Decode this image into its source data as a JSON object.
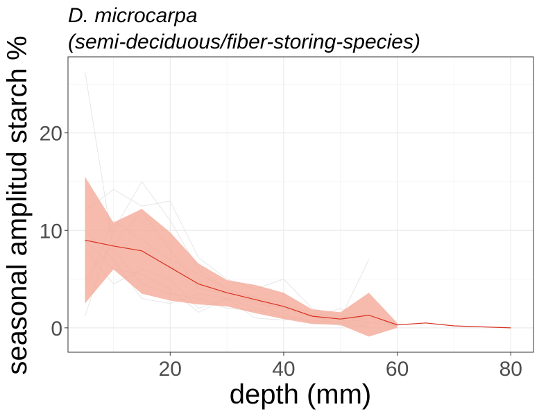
{
  "chart_data": {
    "type": "line",
    "title": "D. microcarpa",
    "subtitle": "(semi-deciduous/fiber-storing-species)",
    "xlabel": "depth (mm)",
    "ylabel": "seasonal amplitud starch %",
    "xlim": [
      2,
      84
    ],
    "ylim": [
      -2.5,
      27.8
    ],
    "xticks": [
      20,
      40,
      60,
      80
    ],
    "yticks": [
      0,
      10,
      20
    ],
    "grid": true,
    "legend": "none",
    "colors": {
      "mean_line": "#d7301f",
      "ribbon": "#f4a896",
      "individual_lines": "#e6e6e6",
      "grid_major": "#ebebeb",
      "grid_minor": "#f5f5f5",
      "panel_border": "#333333",
      "tick_label": "#4d4d4d"
    },
    "mean_series": {
      "x": [
        5,
        10,
        15,
        20,
        25,
        30,
        35,
        40,
        45,
        50,
        55,
        60,
        65,
        70,
        80
      ],
      "y": [
        9.0,
        8.4,
        7.9,
        6.2,
        4.5,
        3.6,
        2.9,
        2.2,
        1.2,
        0.9,
        1.3,
        0.3,
        0.5,
        0.2,
        0.0
      ]
    },
    "ribbon_series": {
      "x": [
        5,
        10,
        15,
        20,
        25,
        30,
        35,
        40,
        45,
        50,
        55,
        60
      ],
      "lower": [
        2.5,
        6.0,
        3.5,
        2.8,
        2.4,
        2.2,
        1.5,
        0.9,
        0.4,
        0.3,
        -0.9,
        0.0
      ],
      "upper": [
        15.5,
        10.8,
        12.2,
        9.8,
        6.6,
        4.9,
        4.4,
        3.6,
        1.9,
        1.6,
        3.6,
        0.5
      ]
    },
    "individual_series": [
      {
        "x": [
          5,
          10,
          15,
          20,
          25,
          30,
          35,
          40,
          45,
          50,
          55,
          60
        ],
        "y": [
          26.3,
          8.0,
          4.5,
          3.5,
          3.0,
          2.0,
          1.8,
          1.2,
          0.8,
          0.5,
          1.0,
          0.2
        ]
      },
      {
        "x": [
          5,
          10,
          15,
          20,
          25,
          30,
          35,
          40,
          45,
          50,
          55,
          60
        ],
        "y": [
          1.2,
          10.0,
          15.0,
          11.0,
          6.0,
          4.0,
          2.5,
          2.0,
          1.0,
          0.8,
          0.6,
          0.2
        ]
      },
      {
        "x": [
          5,
          10,
          15,
          20,
          25,
          30,
          35,
          40,
          45,
          50,
          55
        ],
        "y": [
          12.0,
          14.2,
          12.5,
          13.0,
          7.2,
          5.0,
          4.0,
          5.0,
          2.0,
          1.2,
          0.5
        ]
      },
      {
        "x": [
          5,
          10,
          15,
          20,
          25,
          30,
          35,
          40,
          45,
          50,
          55
        ],
        "y": [
          5.0,
          8.5,
          12.0,
          8.0,
          4.0,
          3.5,
          3.2,
          2.5,
          1.5,
          1.0,
          7.0
        ]
      },
      {
        "x": [
          5,
          10,
          15,
          20,
          25,
          30,
          35,
          40,
          45,
          50,
          55
        ],
        "y": [
          8.0,
          4.5,
          6.0,
          5.0,
          2.0,
          3.0,
          2.8,
          2.0,
          1.0,
          2.0,
          0.5
        ]
      },
      {
        "x": [
          5,
          10,
          15,
          20,
          25,
          30,
          35,
          40,
          45,
          50,
          55
        ],
        "y": [
          10.0,
          7.0,
          3.0,
          2.5,
          3.5,
          3.0,
          2.0,
          1.5,
          0.5,
          0.3,
          0.2
        ]
      },
      {
        "x": [
          5,
          10,
          15,
          20,
          25,
          30,
          35,
          40,
          45,
          50,
          55
        ],
        "y": [
          4.0,
          11.0,
          9.0,
          7.0,
          5.5,
          4.0,
          3.0,
          1.0,
          0.7,
          0.5,
          0.4
        ]
      },
      {
        "x": [
          5,
          10,
          15,
          20,
          25,
          30,
          35,
          40,
          45,
          50,
          55
        ],
        "y": [
          9.0,
          6.0,
          5.5,
          4.0,
          1.6,
          3.0,
          1.0,
          0.8,
          1.3,
          0.2,
          0.1
        ]
      }
    ]
  }
}
